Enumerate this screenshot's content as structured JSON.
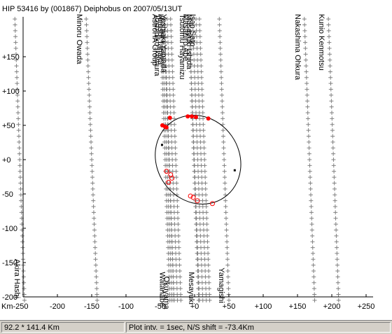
{
  "chart_data": {
    "type": "scatter",
    "title": "HIP 53416  by (001867) Deiphobus on 2007/05/13UT",
    "xlabel": "Km",
    "ylabel": "",
    "xlim": [
      -250,
      250
    ],
    "ylim": [
      -200,
      200
    ],
    "x_ticks": [
      -250,
      -200,
      -150,
      -100,
      -50,
      0,
      50,
      100,
      150,
      200,
      250
    ],
    "x_tick_labels": [
      "-250",
      "-200",
      "-150",
      "-100",
      "-50",
      "+0",
      "+50",
      "+100",
      "+150",
      "+200",
      "+250"
    ],
    "y_ticks": [
      150,
      100,
      50,
      0,
      -50,
      -100,
      -150,
      -200
    ],
    "y_tick_labels": [
      "+150",
      "+100",
      "+50",
      "+0",
      "-50",
      "-100",
      "-150",
      "-200"
    ],
    "grid": false,
    "chords": [
      {
        "observer": "Minoru Owada",
        "x_top": -158,
        "x_bottom": -142,
        "label_position": "top"
      },
      {
        "observer": "AstroHA Group",
        "x_top": -48,
        "x_bottom": -33,
        "label_position": "top"
      },
      {
        "observer": "Toshihiko Ikemura",
        "x_top": -45,
        "x_bottom": -30,
        "label_position": "top"
      },
      {
        "observer": "Hiroshi Tanaka",
        "x_top": -40,
        "x_bottom": -25,
        "label_position": "top"
      },
      {
        "observer": "Yoshiaki Yamada",
        "x_top": -35,
        "x_bottom": -20,
        "label_position": "top"
      },
      {
        "observer": "Tsutomu Hayamizu",
        "x_top": -8,
        "x_bottom": 7,
        "label_position": "top"
      },
      {
        "observer": "Masahiro Abe",
        "x_top": -3,
        "x_bottom": 12,
        "label_position": "top"
      },
      {
        "observer": "Masayuki Ishida",
        "x_top": 2,
        "x_bottom": 17,
        "label_position": "top"
      },
      {
        "observer": "Isao Sato",
        "x_top": 7,
        "x_bottom": 22,
        "label_position": "top"
      },
      {
        "observer": "Nakashima Ohkura",
        "x_top": 160,
        "x_bottom": 175,
        "label_position": "top"
      },
      {
        "observer": "Kunio Kenmotsu",
        "x_top": 195,
        "x_bottom": 210,
        "label_position": "top"
      },
      {
        "observer": "Akira Hashi",
        "x_top": -262,
        "x_bottom": -248,
        "label_position": "bottom"
      },
      {
        "observer": "Watanabe",
        "x_top": -50,
        "x_bottom": -36,
        "label_position": "bottom"
      },
      {
        "observer": "Okuyama",
        "x_top": -44,
        "x_bottom": -30,
        "label_position": "bottom"
      },
      {
        "observer": "Mesayuki",
        "x_top": -8,
        "x_bottom": 6,
        "label_position": "bottom"
      },
      {
        "observer": "Yamagishi",
        "x_top": 36,
        "x_bottom": 50,
        "label_position": "bottom"
      }
    ],
    "disappearances": [
      {
        "x": -47,
        "y": 50
      },
      {
        "x": -43,
        "y": 48
      },
      {
        "x": -41,
        "y": 47
      },
      {
        "x": -36,
        "y": 61
      },
      {
        "x": -10,
        "y": 63
      },
      {
        "x": -4,
        "y": 63
      },
      {
        "x": 2,
        "y": 62
      },
      {
        "x": 20,
        "y": 60
      }
    ],
    "reappearances": [
      {
        "x": -41,
        "y": -17
      },
      {
        "x": -35,
        "y": -22
      },
      {
        "x": -33,
        "y": -27
      },
      {
        "x": -38,
        "y": -33
      },
      {
        "x": -6,
        "y": -53
      },
      {
        "x": -2,
        "y": -55
      },
      {
        "x": 4,
        "y": -60
      },
      {
        "x": 26,
        "y": -64
      }
    ],
    "ellipse": {
      "cx": 5,
      "cy": 0,
      "rx": 60,
      "ry": 67,
      "rotation_deg": -35
    },
    "ellipse_marker_points": [
      {
        "x": 58,
        "y": -15
      },
      {
        "x": -48,
        "y": 22
      }
    ]
  },
  "status": {
    "left": "92.2 * 141.4 Km",
    "right": "Plot intv. = 1sec, N/S shift = -73.4Km"
  },
  "colors": {
    "chord_marks": "#808080",
    "event_dots": "#ff0000",
    "ellipse": "#000000"
  }
}
